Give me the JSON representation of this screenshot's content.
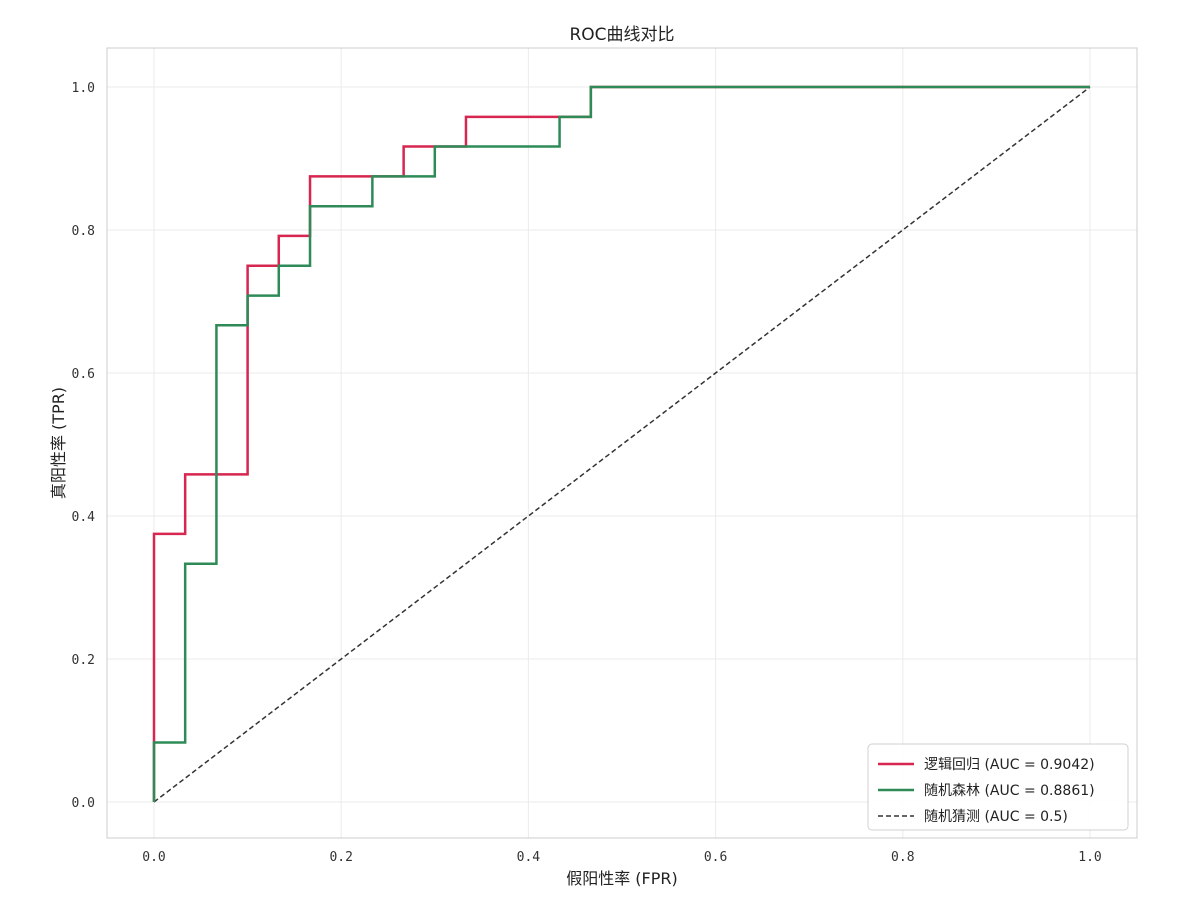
{
  "chart_data": {
    "type": "line",
    "title": "ROC曲线对比",
    "xlabel": "假阳性率 (FPR)",
    "ylabel": "真阳性率 (TPR)",
    "xlim": [
      -0.05,
      1.05
    ],
    "ylim": [
      -0.05,
      1.05
    ],
    "xticks": [
      0.0,
      0.2,
      0.4,
      0.6,
      0.8,
      1.0
    ],
    "yticks": [
      0.0,
      0.2,
      0.4,
      0.6,
      0.8,
      1.0
    ],
    "xtick_labels": [
      "0.0",
      "0.2",
      "0.4",
      "0.6",
      "0.8",
      "1.0"
    ],
    "ytick_labels": [
      "0.0",
      "0.2",
      "0.4",
      "0.6",
      "0.8",
      "1.0"
    ],
    "grid": true,
    "legend_position": "bottom-right",
    "series": [
      {
        "name": "逻辑回归 (AUC = 0.9042)",
        "color": "#d7264f",
        "style": "solid",
        "x": [
          0.0,
          0.0,
          0.0333,
          0.0333,
          0.1,
          0.1,
          0.1333,
          0.1333,
          0.1667,
          0.1667,
          0.2667,
          0.2667,
          0.3333,
          0.3333,
          0.4667,
          0.4667,
          1.0
        ],
        "y": [
          0.0,
          0.375,
          0.375,
          0.4583,
          0.4583,
          0.75,
          0.75,
          0.7917,
          0.7917,
          0.875,
          0.875,
          0.9167,
          0.9167,
          0.9583,
          0.9583,
          1.0,
          1.0
        ]
      },
      {
        "name": "随机森林 (AUC = 0.8861)",
        "color": "#2e8b57",
        "style": "solid",
        "x": [
          0.0,
          0.0,
          0.0333,
          0.0333,
          0.0667,
          0.0667,
          0.1,
          0.1,
          0.1333,
          0.1333,
          0.1667,
          0.1667,
          0.2333,
          0.2333,
          0.3,
          0.3,
          0.4333,
          0.4333,
          0.4667,
          0.4667,
          1.0
        ],
        "y": [
          0.0,
          0.0833,
          0.0833,
          0.3333,
          0.3333,
          0.6667,
          0.6667,
          0.7083,
          0.7083,
          0.75,
          0.75,
          0.8333,
          0.8333,
          0.875,
          0.875,
          0.9167,
          0.9167,
          0.9583,
          0.9583,
          1.0,
          1.0
        ]
      },
      {
        "name": "随机猜测 (AUC = 0.5)",
        "color": "#333333",
        "style": "dashed",
        "x": [
          0.0,
          1.0
        ],
        "y": [
          0.0,
          1.0
        ]
      }
    ]
  }
}
